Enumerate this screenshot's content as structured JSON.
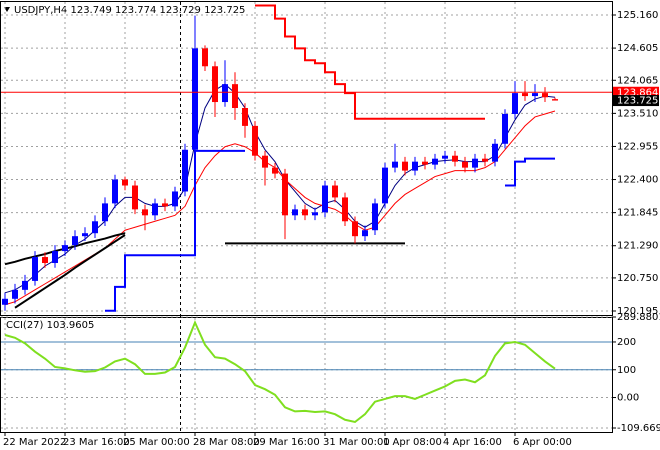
{
  "chart_data": [
    {
      "type": "candlestick",
      "title": "USDJPY,H4  123.749 123.774 123.729 123.725",
      "categories": [
        "22 Mar 2022",
        null,
        null,
        null,
        null,
        null,
        "23 Mar 16:00",
        null,
        null,
        null,
        null,
        null,
        "25 Mar 00:00",
        null,
        null,
        null,
        null,
        null,
        null,
        "28 Mar 08:00",
        null,
        null,
        null,
        null,
        null,
        "29 Mar 16:00",
        null,
        null,
        null,
        null,
        null,
        null,
        "31 Mar 00:00",
        null,
        null,
        null,
        null,
        null,
        "1 Apr 08:00",
        null,
        null,
        null,
        null,
        null,
        "4 Apr 16:00",
        null,
        null,
        null,
        null,
        null,
        null,
        "6 Apr 00:00",
        null,
        null,
        null,
        null
      ],
      "ohlc": [
        [
          120.3,
          120.5,
          120.2,
          120.4
        ],
        [
          120.4,
          120.65,
          120.32,
          120.55
        ],
        [
          120.55,
          120.8,
          120.47,
          120.7
        ],
        [
          120.7,
          121.2,
          120.62,
          121.1
        ],
        [
          121.1,
          121.18,
          120.92,
          121.0
        ],
        [
          121.0,
          121.3,
          120.92,
          121.2
        ],
        [
          121.2,
          121.38,
          121.12,
          121.3
        ],
        [
          121.3,
          121.55,
          121.22,
          121.45
        ],
        [
          121.45,
          121.6,
          121.37,
          121.5
        ],
        [
          121.5,
          121.8,
          121.42,
          121.7
        ],
        [
          121.7,
          122.1,
          121.62,
          122.0
        ],
        [
          122.0,
          122.48,
          121.92,
          122.4
        ],
        [
          122.4,
          122.45,
          122.22,
          122.3
        ],
        [
          122.3,
          122.38,
          121.82,
          121.9
        ],
        [
          121.9,
          121.98,
          121.55,
          121.8
        ],
        [
          121.8,
          122.08,
          121.72,
          122.0
        ],
        [
          122.0,
          122.08,
          121.87,
          121.95
        ],
        [
          121.95,
          122.28,
          121.87,
          122.2
        ],
        [
          122.2,
          123.0,
          122.12,
          122.9
        ],
        [
          122.9,
          125.15,
          122.82,
          124.6
        ],
        [
          124.6,
          124.65,
          124.22,
          124.3
        ],
        [
          124.3,
          124.38,
          123.45,
          123.7
        ],
        [
          123.7,
          124.4,
          123.62,
          124.0
        ],
        [
          124.0,
          124.2,
          123.4,
          123.6
        ],
        [
          123.6,
          123.68,
          123.1,
          123.3
        ],
        [
          123.3,
          123.38,
          122.72,
          122.8
        ],
        [
          122.8,
          122.88,
          122.3,
          122.6
        ],
        [
          122.6,
          122.68,
          122.42,
          122.5
        ],
        [
          122.5,
          122.58,
          121.4,
          121.8
        ],
        [
          121.8,
          121.98,
          121.72,
          121.9
        ],
        [
          121.9,
          121.98,
          121.72,
          121.8
        ],
        [
          121.8,
          121.93,
          121.72,
          121.85
        ],
        [
          121.85,
          122.38,
          121.77,
          122.3
        ],
        [
          122.3,
          122.38,
          122.02,
          122.1
        ],
        [
          122.1,
          122.18,
          121.62,
          121.7
        ],
        [
          121.7,
          121.78,
          121.33,
          121.45
        ],
        [
          121.45,
          121.63,
          121.37,
          121.55
        ],
        [
          121.55,
          122.08,
          121.47,
          122.0
        ],
        [
          122.0,
          122.68,
          121.92,
          122.6
        ],
        [
          122.6,
          123.0,
          122.52,
          122.7
        ],
        [
          122.7,
          122.78,
          122.47,
          122.55
        ],
        [
          122.55,
          122.78,
          122.47,
          122.7
        ],
        [
          122.7,
          122.78,
          122.57,
          122.65
        ],
        [
          122.65,
          122.83,
          122.57,
          122.75
        ],
        [
          122.75,
          122.88,
          122.67,
          122.8
        ],
        [
          122.8,
          122.88,
          122.62,
          122.7
        ],
        [
          122.7,
          122.78,
          122.52,
          122.6
        ],
        [
          122.6,
          122.83,
          122.52,
          122.75
        ],
        [
          122.75,
          122.83,
          122.62,
          122.7
        ],
        [
          122.7,
          123.08,
          122.62,
          123.0
        ],
        [
          123.0,
          123.58,
          122.92,
          123.5
        ],
        [
          123.5,
          124.05,
          123.42,
          123.85
        ],
        [
          123.85,
          124.05,
          123.72,
          123.8
        ],
        [
          123.8,
          124.0,
          123.7,
          123.85
        ],
        [
          123.85,
          123.95,
          123.7,
          123.78
        ],
        [
          123.749,
          123.774,
          123.729,
          123.725
        ]
      ],
      "up_color": "#0000ff",
      "down_color": "#ff0000",
      "ylim": [
        120.128,
        125.378
      ],
      "yticks": [
        {
          "value": 125.16,
          "label": "125.160"
        },
        124.605,
        124.065,
        {
          "value": 123.51,
          "label": "123.510"
        },
        122.955,
        {
          "value": 122.4,
          "label": "122.400"
        },
        121.845,
        {
          "value": 121.29,
          "label": "121.290"
        },
        {
          "value": 120.75,
          "label": "120.750"
        },
        120.195
      ],
      "grid": true,
      "overlays": [
        {
          "color": "#000080",
          "values": [
            120.5,
            120.55,
            120.65,
            120.8,
            120.95,
            121.05,
            121.15,
            121.3,
            121.4,
            121.55,
            121.7,
            121.95,
            122.1,
            122.1,
            122.0,
            121.95,
            121.95,
            122.0,
            122.25,
            123.0,
            123.6,
            123.9,
            124.0,
            123.85,
            123.6,
            123.2,
            122.9,
            122.7,
            122.4,
            122.2,
            122.0,
            121.9,
            122.0,
            122.05,
            121.9,
            121.7,
            121.6,
            121.7,
            122.0,
            122.3,
            122.5,
            122.6,
            122.65,
            122.7,
            122.72,
            122.73,
            122.7,
            122.7,
            122.7,
            122.8,
            123.1,
            123.4,
            123.65,
            123.75,
            123.8,
            123.78
          ]
        },
        {
          "color": "#ff0000",
          "values": [
            120.3,
            120.35,
            120.45,
            120.55,
            120.65,
            120.75,
            120.85,
            120.95,
            121.05,
            121.15,
            121.25,
            121.4,
            121.55,
            121.6,
            121.65,
            121.7,
            121.75,
            121.8,
            121.95,
            122.3,
            122.6,
            122.8,
            122.95,
            123.0,
            122.95,
            122.85,
            122.7,
            122.6,
            122.4,
            122.25,
            122.1,
            122.0,
            121.95,
            121.9,
            121.8,
            121.65,
            121.55,
            121.6,
            121.8,
            122.0,
            122.15,
            122.25,
            122.35,
            122.45,
            122.5,
            122.55,
            122.55,
            122.55,
            122.6,
            122.7,
            122.9,
            123.1,
            123.3,
            123.45,
            123.5,
            123.55
          ]
        },
        {
          "color": "#ff0000",
          "width": 2,
          "step": true,
          "values": [
            null,
            null,
            null,
            null,
            null,
            null,
            null,
            null,
            null,
            null,
            null,
            null,
            null,
            null,
            null,
            null,
            null,
            null,
            null,
            null,
            null,
            null,
            null,
            null,
            null,
            125.32,
            125.32,
            125.1,
            124.8,
            124.6,
            124.4,
            124.35,
            124.2,
            124.0,
            123.85,
            123.42,
            123.42,
            123.42,
            123.42,
            123.42,
            123.42,
            123.42,
            123.42,
            123.42,
            123.42,
            123.42,
            123.42,
            123.42,
            123.42,
            null,
            null,
            null,
            null,
            null,
            null,
            null
          ]
        },
        {
          "color": "#0000ff",
          "width": 2,
          "step": true,
          "values": [
            null,
            null,
            null,
            null,
            null,
            null,
            null,
            null,
            null,
            null,
            120.2,
            120.6,
            121.13,
            121.13,
            121.13,
            121.13,
            121.13,
            121.13,
            121.13,
            122.88,
            122.88,
            122.88,
            122.88,
            122.88,
            122.88,
            null,
            null,
            null,
            null,
            null,
            null,
            null,
            null,
            null,
            null,
            null,
            null,
            null,
            null,
            null,
            null,
            null,
            null,
            null,
            null,
            null,
            null,
            null,
            null,
            null,
            122.3,
            122.7,
            122.75,
            122.75,
            122.75,
            122.75
          ]
        },
        {
          "color": "#000000",
          "width": 2,
          "values": [
            null,
            null,
            null,
            null,
            null,
            null,
            null,
            null,
            null,
            null,
            null,
            null,
            null,
            null,
            null,
            null,
            null,
            null,
            null,
            null,
            null,
            null,
            121.33,
            121.33,
            121.33,
            121.33,
            121.33,
            121.33,
            121.33,
            121.33,
            121.33,
            121.33,
            121.33,
            121.33,
            121.33,
            121.33,
            121.33,
            121.33,
            121.33,
            121.33,
            121.33,
            null,
            null,
            null,
            null,
            null,
            null,
            null,
            null,
            null,
            null,
            null,
            null,
            null,
            null,
            null
          ]
        },
        {
          "color": "#000000",
          "width": 2,
          "values": [
            120.98,
            121.02,
            121.07,
            121.11,
            121.15,
            121.2,
            121.24,
            121.28,
            121.33,
            121.37,
            121.41,
            121.46,
            121.5,
            null,
            null,
            null,
            null,
            null,
            null,
            null,
            null,
            null,
            null,
            null,
            null,
            null,
            null,
            null,
            null,
            null,
            null,
            null,
            null,
            null,
            null,
            null,
            null,
            null,
            null,
            null,
            null,
            null,
            null,
            null,
            null,
            null,
            null,
            null,
            null,
            null,
            null,
            null,
            null,
            null,
            null,
            null
          ]
        },
        {
          "color": "#000000",
          "width": 2,
          "values": [
            null,
            120.25,
            120.36,
            120.47,
            120.58,
            120.69,
            120.8,
            120.92,
            121.03,
            121.14,
            121.25,
            121.36,
            121.47,
            null,
            null,
            null,
            null,
            null,
            null,
            null,
            null,
            null,
            null,
            null,
            null,
            null,
            null,
            null,
            null,
            null,
            null,
            null,
            null,
            null,
            null,
            null,
            null,
            null,
            null,
            null,
            null,
            null,
            null,
            null,
            null,
            null,
            null,
            null,
            null,
            null,
            null,
            null,
            null,
            null,
            null,
            null
          ]
        }
      ],
      "price_lines": [
        {
          "value": 123.864,
          "color": "#ff0000",
          "line": true
        },
        {
          "value": 123.725,
          "color": "#000000",
          "line": false
        }
      ]
    },
    {
      "type": "line",
      "title": "CCI(27) 103.9605",
      "color": "#7fdf1f",
      "values": [
        225,
        215,
        195,
        165,
        140,
        110,
        105,
        98,
        93,
        95,
        108,
        130,
        140,
        120,
        85,
        85,
        90,
        110,
        180,
        270,
        190,
        145,
        140,
        120,
        95,
        45,
        30,
        10,
        -35,
        -50,
        -48,
        -52,
        -50,
        -60,
        -80,
        -88,
        -60,
        -15,
        -5,
        5,
        5,
        -5,
        10,
        25,
        40,
        60,
        65,
        55,
        80,
        150,
        195,
        200,
        190,
        160,
        130,
        103.9605
      ],
      "ylim": [
        -109.6698,
        289.8801
      ],
      "yticks": [
        289.8801,
        200,
        100,
        {
          "value": 0,
          "label": "0.00"
        },
        -109.6698
      ],
      "levels": [
        200,
        100
      ],
      "level_color": "#4682b4"
    }
  ]
}
